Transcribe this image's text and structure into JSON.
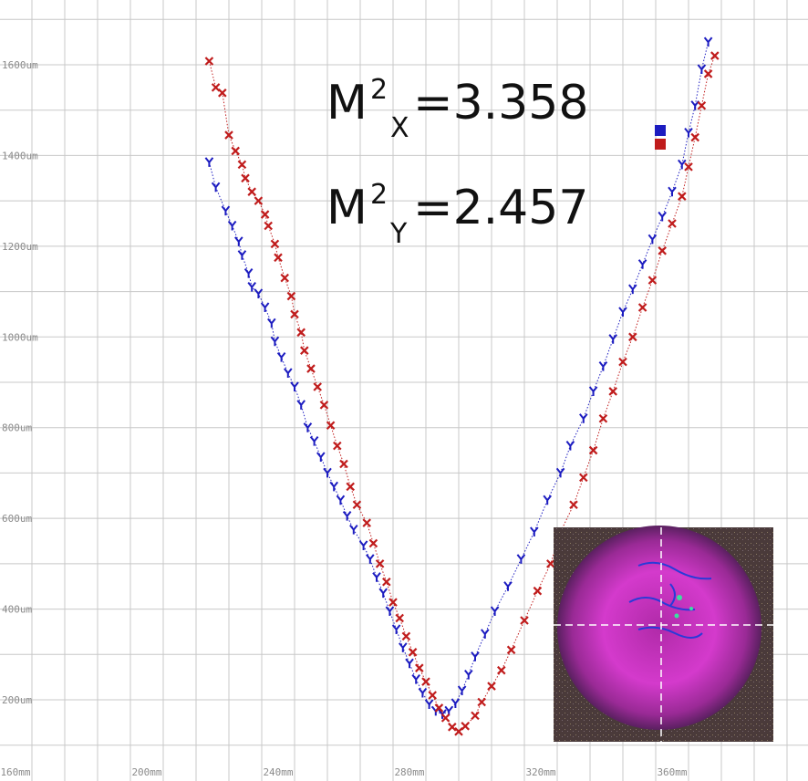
{
  "chart_data": {
    "type": "scatter",
    "title": "",
    "xlabel": "",
    "ylabel": "",
    "xlim": [
      152,
      404
    ],
    "ylim": [
      100,
      1710
    ],
    "grid": true,
    "x_ticks": [
      "160mm",
      "200mm",
      "240mm",
      "280mm",
      "320mm",
      "360mm"
    ],
    "y_ticks": [
      "200um",
      "400um",
      "600um",
      "800um",
      "1000um",
      "1200um",
      "1400um",
      "1600um"
    ],
    "x_tick_values": [
      160,
      200,
      240,
      280,
      320,
      360
    ],
    "y_tick_values": [
      200,
      400,
      600,
      800,
      1000,
      1200,
      1400,
      1600
    ],
    "annotations": {
      "mx_base": "M",
      "mx_sup": "2",
      "mx_sub": "X",
      "mx_value": "=3.358",
      "my_base": "M",
      "my_sup": "2",
      "my_sub": "Y",
      "my_value": "=2.457"
    },
    "series": [
      {
        "marker": "Y",
        "color": "#1c1cc0",
        "points": [
          [
            214,
            1385
          ],
          [
            216,
            1330
          ],
          [
            219,
            1278
          ],
          [
            221,
            1245
          ],
          [
            223,
            1210
          ],
          [
            224,
            1180
          ],
          [
            226,
            1140
          ],
          [
            227,
            1110
          ],
          [
            229,
            1095
          ],
          [
            231,
            1065
          ],
          [
            233,
            1030
          ],
          [
            234,
            990
          ],
          [
            236,
            955
          ],
          [
            238,
            920
          ],
          [
            240,
            890
          ],
          [
            242,
            850
          ],
          [
            244,
            800
          ],
          [
            246,
            770
          ],
          [
            248,
            735
          ],
          [
            250,
            700
          ],
          [
            252,
            670
          ],
          [
            254,
            640
          ],
          [
            256,
            605
          ],
          [
            258,
            575
          ],
          [
            261,
            540
          ],
          [
            263,
            510
          ],
          [
            265,
            470
          ],
          [
            267,
            435
          ],
          [
            269,
            395
          ],
          [
            271,
            355
          ],
          [
            273,
            315
          ],
          [
            275,
            280
          ],
          [
            277,
            245
          ],
          [
            279,
            215
          ],
          [
            281,
            190
          ],
          [
            283,
            175
          ],
          [
            285,
            168
          ],
          [
            287,
            175
          ],
          [
            289,
            192
          ],
          [
            291,
            220
          ],
          [
            293,
            255
          ],
          [
            295,
            295
          ],
          [
            298,
            345
          ],
          [
            301,
            395
          ],
          [
            305,
            450
          ],
          [
            309,
            510
          ],
          [
            313,
            570
          ],
          [
            317,
            640
          ],
          [
            321,
            700
          ],
          [
            324,
            760
          ],
          [
            328,
            820
          ],
          [
            331,
            880
          ],
          [
            334,
            935
          ],
          [
            337,
            995
          ],
          [
            340,
            1055
          ],
          [
            343,
            1105
          ],
          [
            346,
            1160
          ],
          [
            349,
            1215
          ],
          [
            352,
            1265
          ],
          [
            355,
            1320
          ],
          [
            358,
            1380
          ],
          [
            360,
            1450
          ],
          [
            362,
            1510
          ],
          [
            364,
            1590
          ],
          [
            366,
            1650
          ]
        ]
      },
      {
        "marker": "X",
        "color": "#c01c1c",
        "points": [
          [
            214,
            1608
          ],
          [
            216,
            1550
          ],
          [
            218,
            1538
          ],
          [
            220,
            1445
          ],
          [
            222,
            1410
          ],
          [
            224,
            1380
          ],
          [
            225,
            1350
          ],
          [
            227,
            1320
          ],
          [
            229,
            1300
          ],
          [
            231,
            1270
          ],
          [
            232,
            1245
          ],
          [
            234,
            1205
          ],
          [
            235,
            1175
          ],
          [
            237,
            1130
          ],
          [
            239,
            1090
          ],
          [
            240,
            1050
          ],
          [
            242,
            1010
          ],
          [
            243,
            970
          ],
          [
            245,
            930
          ],
          [
            247,
            890
          ],
          [
            249,
            850
          ],
          [
            251,
            805
          ],
          [
            253,
            760
          ],
          [
            255,
            720
          ],
          [
            257,
            670
          ],
          [
            259,
            630
          ],
          [
            262,
            590
          ],
          [
            264,
            545
          ],
          [
            266,
            500
          ],
          [
            268,
            460
          ],
          [
            270,
            415
          ],
          [
            272,
            380
          ],
          [
            274,
            340
          ],
          [
            276,
            305
          ],
          [
            278,
            270
          ],
          [
            280,
            240
          ],
          [
            282,
            210
          ],
          [
            284,
            182
          ],
          [
            286,
            160
          ],
          [
            288,
            140
          ],
          [
            290,
            130
          ],
          [
            292,
            142
          ],
          [
            295,
            165
          ],
          [
            297,
            195
          ],
          [
            300,
            230
          ],
          [
            303,
            265
          ],
          [
            306,
            310
          ],
          [
            310,
            375
          ],
          [
            314,
            440
          ],
          [
            318,
            500
          ],
          [
            321,
            570
          ],
          [
            325,
            630
          ],
          [
            328,
            690
          ],
          [
            331,
            750
          ],
          [
            334,
            820
          ],
          [
            337,
            880
          ],
          [
            340,
            945
          ],
          [
            343,
            1000
          ],
          [
            346,
            1065
          ],
          [
            349,
            1125
          ],
          [
            352,
            1190
          ],
          [
            355,
            1250
          ],
          [
            358,
            1310
          ],
          [
            360,
            1375
          ],
          [
            362,
            1440
          ],
          [
            364,
            1510
          ],
          [
            366,
            1580
          ],
          [
            368,
            1620
          ]
        ]
      }
    ],
    "colors": {
      "grid": "#c8c8c8",
      "blue": "#1c1cc0",
      "red": "#c01c1c",
      "inset_bg": "#6a2a6a",
      "inset_beam": "#d63ad0"
    }
  }
}
